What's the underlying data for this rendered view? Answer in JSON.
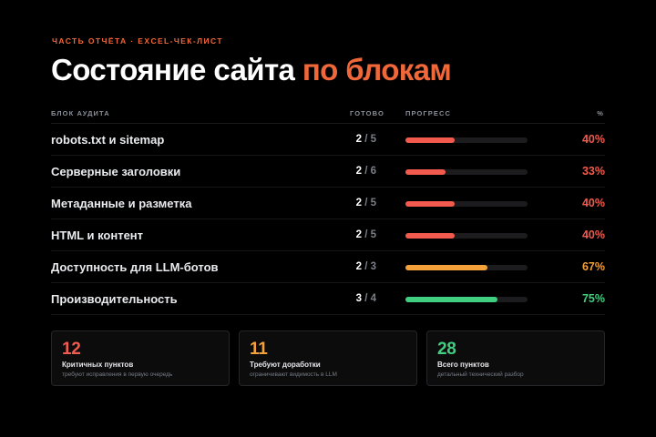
{
  "header": {
    "eyebrow": "ЧАСТЬ ОТЧЁТА · EXCEL-ЧЕК-ЛИСТ",
    "title_main": "Состояние сайта ",
    "title_accent": "по блокам"
  },
  "table": {
    "columns": {
      "name": "БЛОК АУДИТА",
      "done": "ГОТОВО",
      "progress": "ПРОГРЕСС",
      "percent": "%"
    },
    "rows": [
      {
        "name": "robots.txt и sitemap",
        "done": "2",
        "total": "5",
        "percent": "40%",
        "progress": 0.4,
        "color": "#f25a4e"
      },
      {
        "name": "Серверные заголовки",
        "done": "2",
        "total": "6",
        "percent": "33%",
        "progress": 0.33,
        "color": "#f25a4e"
      },
      {
        "name": "Метаданные и разметка",
        "done": "2",
        "total": "5",
        "percent": "40%",
        "progress": 0.4,
        "color": "#f25a4e"
      },
      {
        "name": "HTML и контент",
        "done": "2",
        "total": "5",
        "percent": "40%",
        "progress": 0.4,
        "color": "#f25a4e"
      },
      {
        "name": "Доступность для LLM-ботов",
        "done": "2",
        "total": "3",
        "percent": "67%",
        "progress": 0.67,
        "color": "#f5a13a"
      },
      {
        "name": "Производительность",
        "done": "3",
        "total": "4",
        "percent": "75%",
        "progress": 0.75,
        "color": "#3fcf7f"
      }
    ]
  },
  "summary": [
    {
      "value": "12",
      "label": "Критичных пунктов",
      "sub": "требуют исправления в первую очередь",
      "color": "#f25a4e"
    },
    {
      "value": "11",
      "label": "Требуют доработки",
      "sub": "ограничивают видимость в LLM",
      "color": "#f5a13a"
    },
    {
      "value": "28",
      "label": "Всего пунктов",
      "sub": "детальный технический разбор",
      "color": "#3fcf7f"
    }
  ],
  "colors": {
    "accent": "#f0673a",
    "critical": "#f25a4e",
    "warning": "#f5a13a",
    "good": "#3fcf7f"
  }
}
